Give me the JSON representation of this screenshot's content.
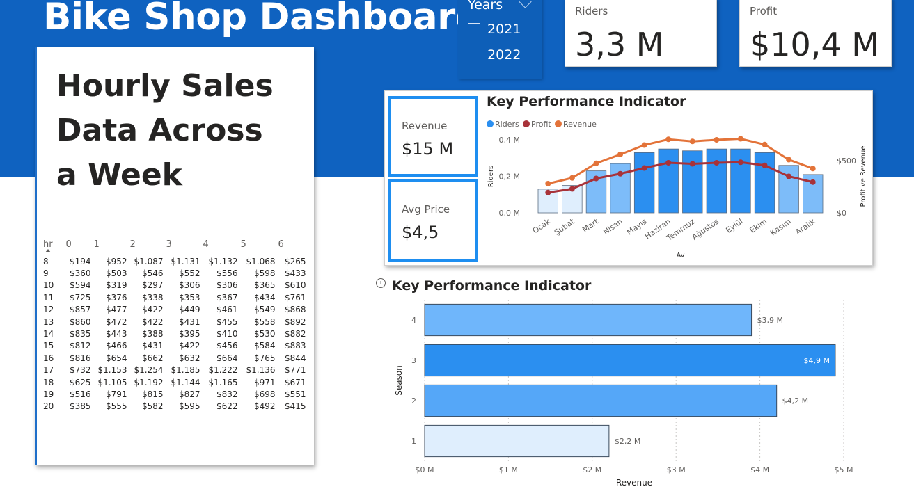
{
  "header": {
    "title": "Bike Shop Dashboard"
  },
  "slicer": {
    "title": "Years",
    "options": [
      "2021",
      "2022"
    ]
  },
  "cards": {
    "riders": {
      "label": "Riders",
      "value": "3,3 M"
    },
    "profit": {
      "label": "Profit",
      "value": "$10,4 M"
    },
    "revenue": {
      "label": "Revenue",
      "value": "$15 M"
    },
    "avg_price": {
      "label": "Avg Price",
      "value": "$4,5"
    }
  },
  "table_panel": {
    "heading_lines": [
      "Hourly Sales",
      "Data Across",
      "a Week"
    ],
    "row_header": "hr",
    "columns": [
      "0",
      "1",
      "2",
      "3",
      "4",
      "5",
      "6"
    ],
    "rows": [
      {
        "hr": "8",
        "cells": [
          "$194",
          "$952",
          "$1.087",
          "$1.131",
          "$1.132",
          "$1.068",
          "$265"
        ]
      },
      {
        "hr": "9",
        "cells": [
          "$360",
          "$503",
          "$546",
          "$552",
          "$556",
          "$598",
          "$433"
        ]
      },
      {
        "hr": "10",
        "cells": [
          "$594",
          "$319",
          "$297",
          "$306",
          "$306",
          "$365",
          "$610"
        ]
      },
      {
        "hr": "11",
        "cells": [
          "$725",
          "$376",
          "$338",
          "$353",
          "$367",
          "$434",
          "$761"
        ]
      },
      {
        "hr": "12",
        "cells": [
          "$857",
          "$477",
          "$422",
          "$449",
          "$461",
          "$549",
          "$868"
        ]
      },
      {
        "hr": "13",
        "cells": [
          "$860",
          "$472",
          "$422",
          "$431",
          "$455",
          "$558",
          "$892"
        ]
      },
      {
        "hr": "14",
        "cells": [
          "$835",
          "$443",
          "$388",
          "$395",
          "$410",
          "$530",
          "$882"
        ]
      },
      {
        "hr": "15",
        "cells": [
          "$812",
          "$466",
          "$431",
          "$422",
          "$456",
          "$584",
          "$883"
        ]
      },
      {
        "hr": "16",
        "cells": [
          "$816",
          "$654",
          "$662",
          "$632",
          "$664",
          "$765",
          "$844"
        ]
      },
      {
        "hr": "17",
        "cells": [
          "$732",
          "$1.153",
          "$1.254",
          "$1.185",
          "$1.222",
          "$1.136",
          "$771"
        ]
      },
      {
        "hr": "18",
        "cells": [
          "$625",
          "$1.105",
          "$1.192",
          "$1.144",
          "$1.165",
          "$971",
          "$671"
        ]
      },
      {
        "hr": "19",
        "cells": [
          "$516",
          "$791",
          "$815",
          "$827",
          "$832",
          "$698",
          "$551"
        ]
      },
      {
        "hr": "20",
        "cells": [
          "$385",
          "$555",
          "$582",
          "$595",
          "$622",
          "$492",
          "$415"
        ]
      }
    ]
  },
  "chart_data": [
    {
      "type": "bar",
      "title": "Key Performance Indicator",
      "xlabel": "Ay",
      "ylabel": "Riders",
      "y2label": "Profit ve Revenue",
      "categories": [
        "Ocak",
        "Şubat",
        "Mart",
        "Nisan",
        "Mayıs",
        "Haziran",
        "Temmuz",
        "Ağustos",
        "Eylül",
        "Ekim",
        "Kasım",
        "Aralık"
      ],
      "ylim": [
        0,
        0.4
      ],
      "y_ticks": [
        "0,4 M",
        "0,2 M",
        "0,0 M"
      ],
      "y2lim": [
        0,
        700
      ],
      "y2_ticks": [
        "$500",
        "$0"
      ],
      "legend": [
        "Riders",
        "Profit",
        "Revenue"
      ],
      "legend_position": "top-left",
      "series": [
        {
          "name": "Riders",
          "kind": "bar",
          "axis": "left",
          "values": [
            0.13,
            0.15,
            0.23,
            0.27,
            0.33,
            0.35,
            0.34,
            0.35,
            0.35,
            0.33,
            0.26,
            0.21
          ],
          "color": "#2b8ff0"
        },
        {
          "name": "Profit",
          "kind": "line",
          "axis": "right",
          "values": [
            195,
            230,
            330,
            375,
            430,
            480,
            470,
            480,
            485,
            455,
            350,
            295
          ],
          "color": "#a83239"
        },
        {
          "name": "Revenue",
          "kind": "line",
          "axis": "right",
          "values": [
            280,
            335,
            475,
            560,
            650,
            705,
            685,
            700,
            710,
            655,
            510,
            425
          ],
          "color": "#e37339"
        }
      ]
    },
    {
      "type": "bar",
      "orientation": "horizontal",
      "title": "Key Performance Indicator",
      "xlabel": "Revenue",
      "ylabel": "Season",
      "categories": [
        "4",
        "3",
        "2",
        "1"
      ],
      "values": [
        3.9,
        4.9,
        4.2,
        2.2
      ],
      "data_labels": [
        "$3,9 M",
        "$4,9 M",
        "$4,2 M",
        "$2,2 M"
      ],
      "colors": [
        "#6fb6fb",
        "#2b8ff0",
        "#55a7f8",
        "#dfeefd"
      ],
      "xlim": [
        0,
        5
      ],
      "x_ticks": [
        "$0 M",
        "$1 M",
        "$2 M",
        "$3 M",
        "$4 M",
        "$5 M"
      ],
      "grid": true
    }
  ]
}
